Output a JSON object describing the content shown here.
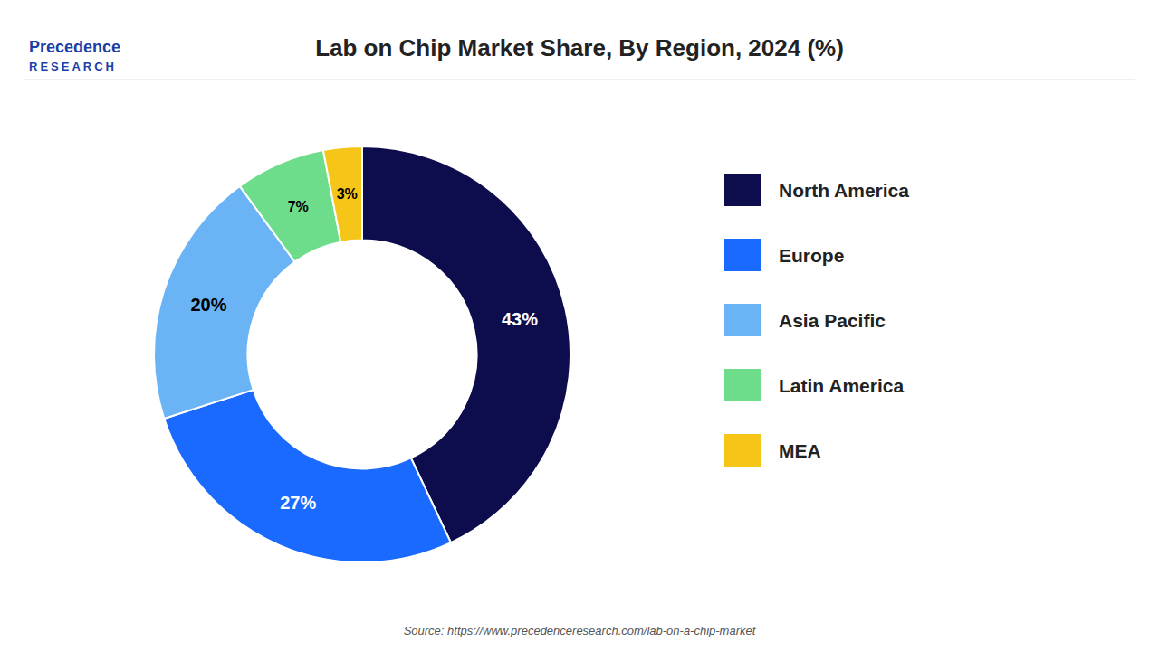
{
  "chart_data": {
    "type": "donut",
    "title": "Lab on Chip Market Share, By Region, 2024 (%)",
    "categories": [
      "North America",
      "Europe",
      "Asia Pacific",
      "Latin America",
      "MEA"
    ],
    "values": [
      43,
      27,
      20,
      7,
      3
    ],
    "value_labels": [
      "43%",
      "27%",
      "20%",
      "7%",
      "3%"
    ],
    "colors": [
      "#0d0d4d",
      "#1a6aff",
      "#6ab4f5",
      "#6ddc8b",
      "#f5c518"
    ],
    "data_labels": true,
    "legend": "right",
    "annotations": [
      "Precedence",
      "RESEARCH",
      "Source: https://www.precedenceresearch.com/lab-on-a-chip-market"
    ]
  }
}
